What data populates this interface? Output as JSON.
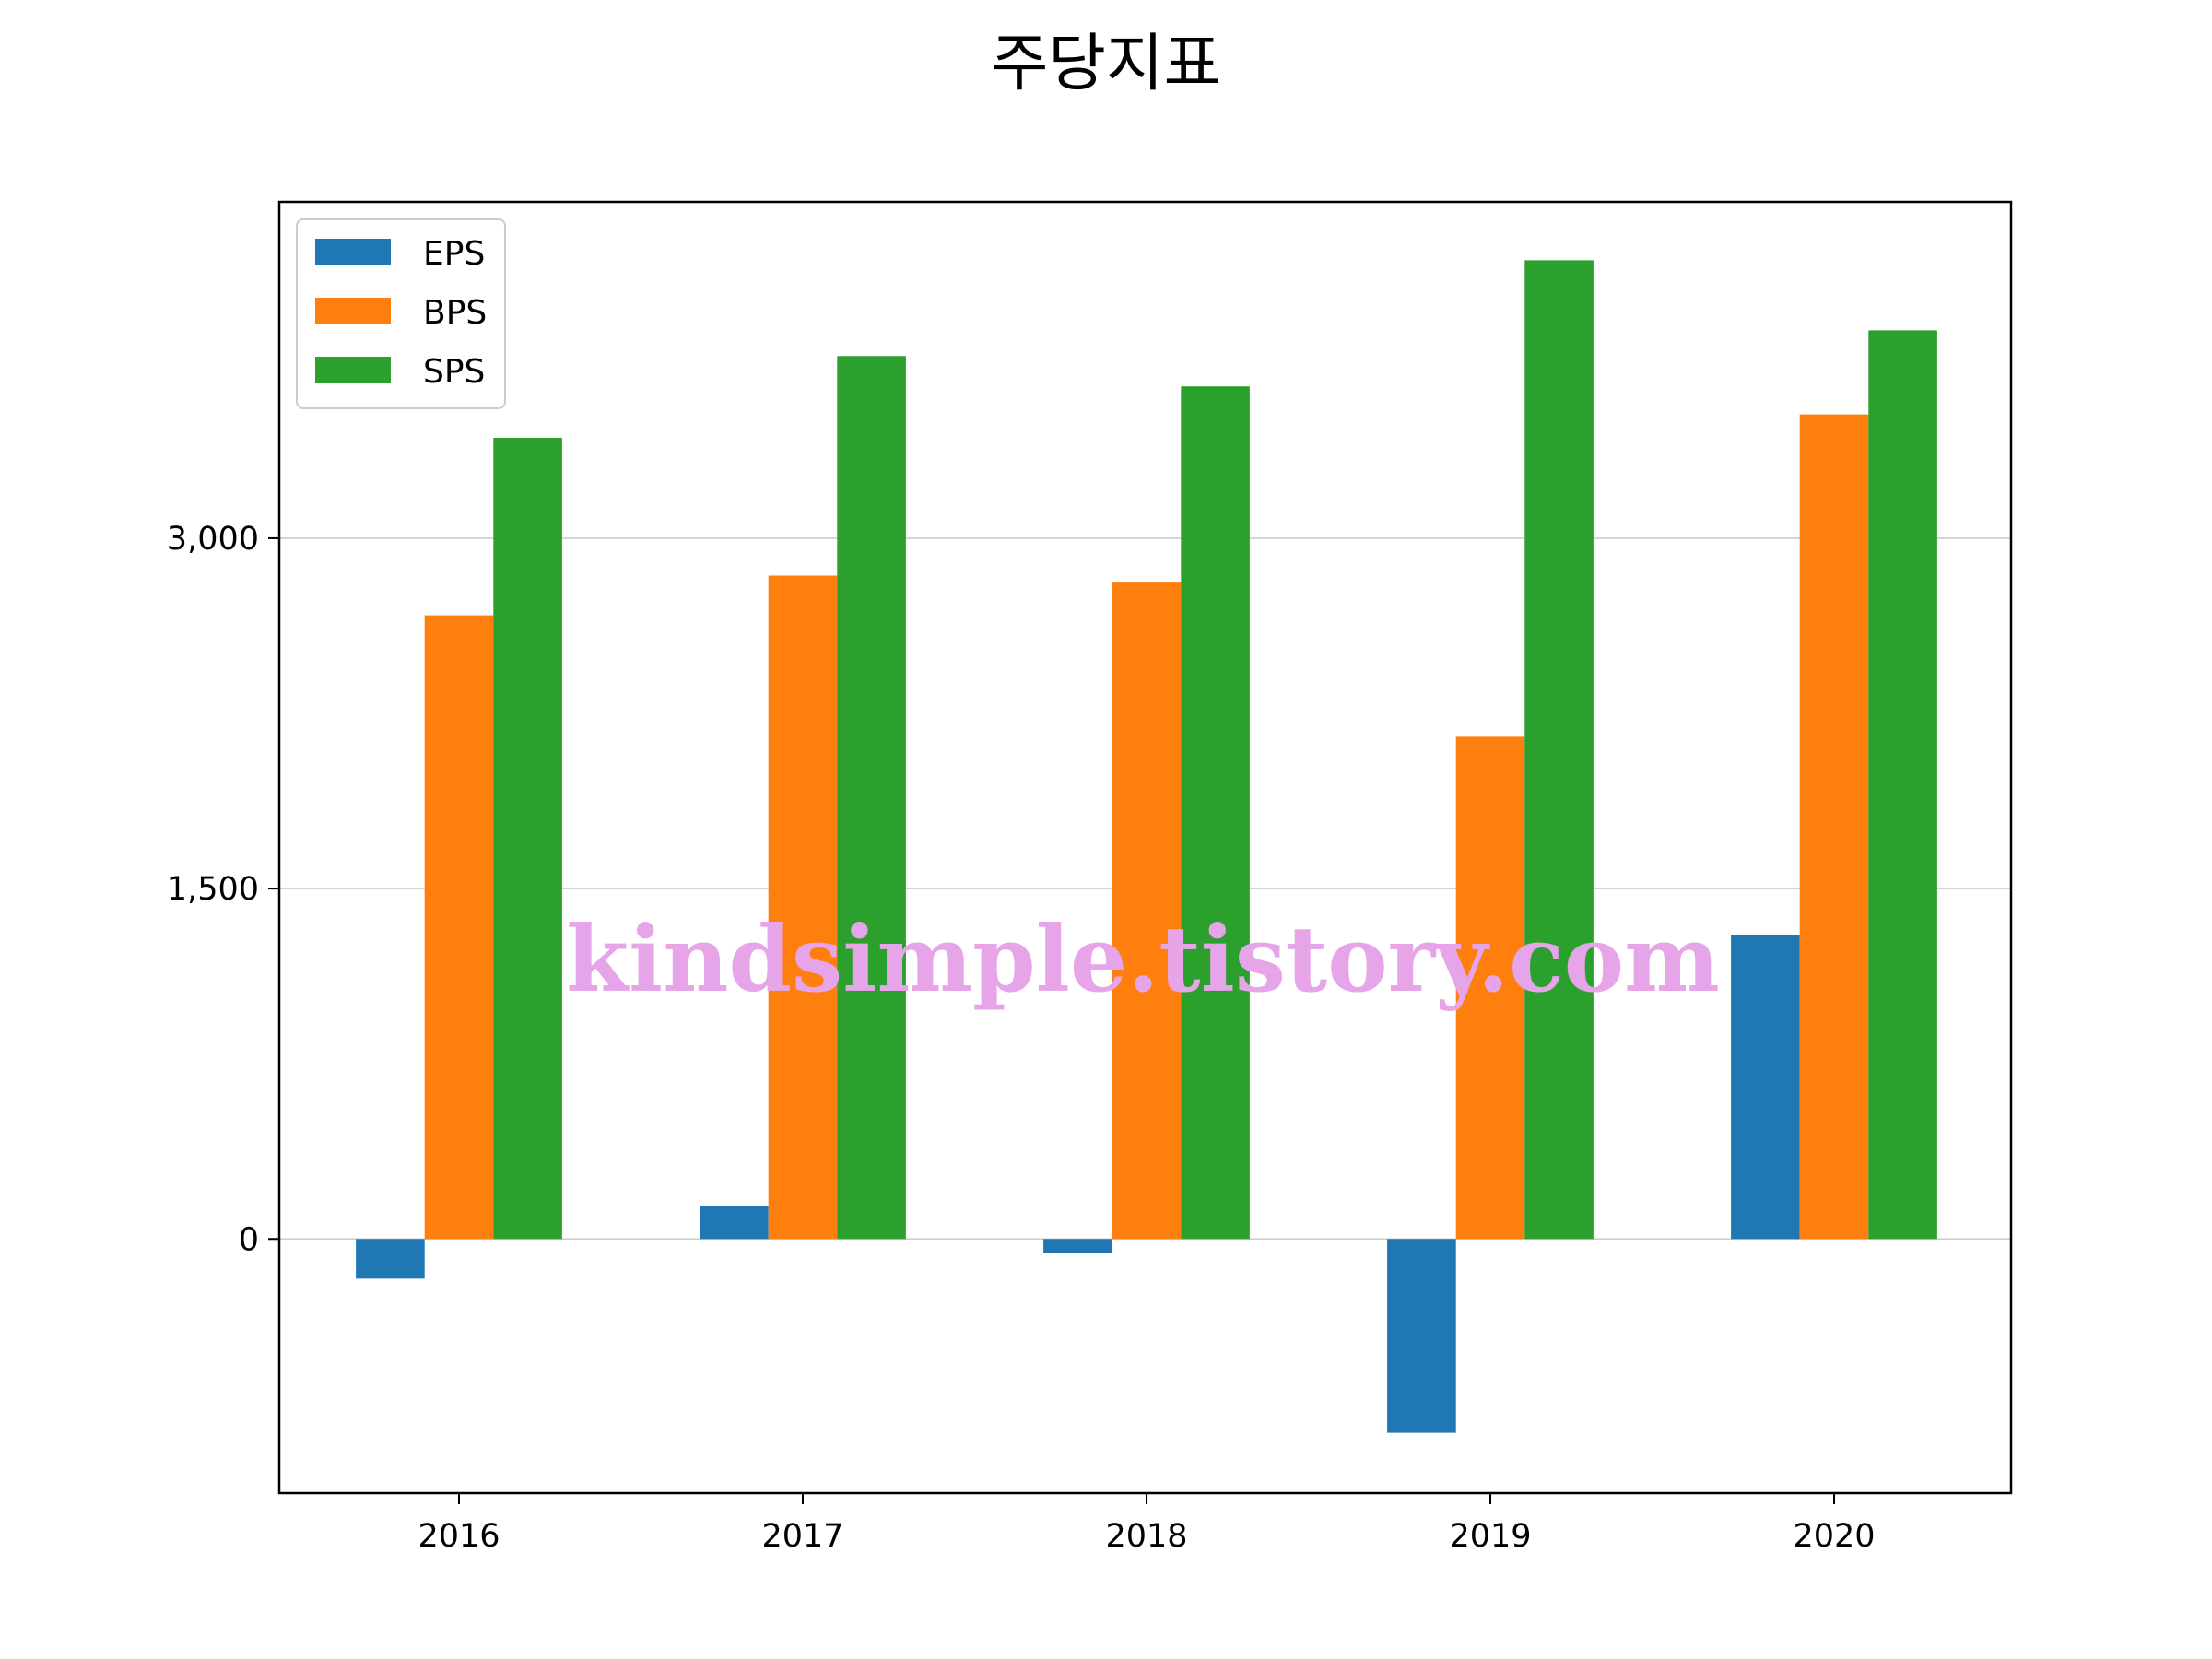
{
  "chart_data": {
    "type": "bar",
    "title": "주당지표",
    "xlabel": "",
    "ylabel": "",
    "categories": [
      "2016",
      "2017",
      "2018",
      "2019",
      "2020"
    ],
    "series": [
      {
        "name": "EPS",
        "color": "#1f77b4",
        "values": [
          -170,
          140,
          -60,
          -830,
          1300
        ]
      },
      {
        "name": "BPS",
        "color": "#ff7f0e",
        "values": [
          2670,
          2840,
          2810,
          2150,
          3530
        ]
      },
      {
        "name": "SPS",
        "color": "#2ca02c",
        "values": [
          3430,
          3780,
          3650,
          4190,
          3890
        ]
      }
    ],
    "yticks": [
      0,
      1500,
      3000
    ],
    "ytick_labels": [
      "0",
      "1,500",
      "3,000"
    ],
    "ylim": [
      -1088,
      4440
    ],
    "grid": "horizontal",
    "legend_position": "top-left",
    "watermark": "kindsimple.tistory.com"
  }
}
